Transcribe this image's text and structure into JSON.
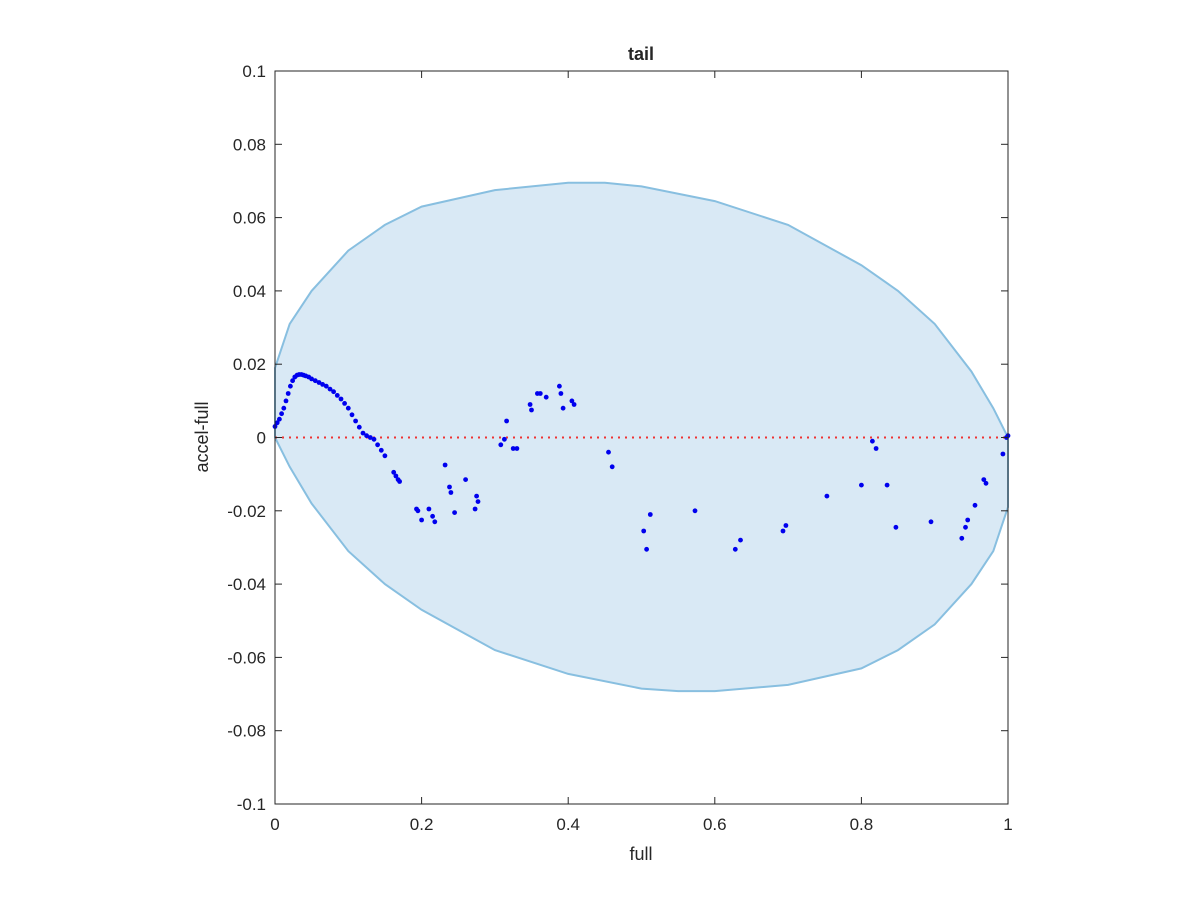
{
  "chart_data": {
    "type": "scatter",
    "title": "tail",
    "xlabel": "full",
    "ylabel": "accel-full",
    "xlim": [
      0,
      1
    ],
    "ylim": [
      -0.1,
      0.1
    ],
    "xticks": [
      0,
      0.2,
      0.4,
      0.6,
      0.8,
      1
    ],
    "xtick_labels": [
      "0",
      "0.2",
      "0.4",
      "0.6",
      "0.8",
      "1"
    ],
    "yticks": [
      -0.1,
      -0.08,
      -0.06,
      -0.04,
      -0.02,
      0,
      0.02,
      0.04,
      0.06,
      0.08,
      0.1
    ],
    "ytick_labels": [
      "-0.1",
      "-0.08",
      "-0.06",
      "-0.04",
      "-0.02",
      "0",
      "0.02",
      "0.04",
      "0.06",
      "0.08",
      "0.1"
    ],
    "grid": false,
    "colors": {
      "points": "#0000ee",
      "ellipse_fill": "#d9e9f5",
      "ellipse_edge": "#88bfe0",
      "zero_line": "#ee3333",
      "axes": "#262626"
    },
    "ellipse": {
      "top_curve": [
        [
          0,
          0.019
        ],
        [
          0.02,
          0.031
        ],
        [
          0.05,
          0.04
        ],
        [
          0.1,
          0.051
        ],
        [
          0.15,
          0.058
        ],
        [
          0.2,
          0.063
        ],
        [
          0.3,
          0.0675
        ],
        [
          0.4,
          0.0695
        ],
        [
          0.45,
          0.0695
        ],
        [
          0.5,
          0.0685
        ],
        [
          0.6,
          0.0645
        ],
        [
          0.7,
          0.058
        ],
        [
          0.8,
          0.047
        ],
        [
          0.85,
          0.04
        ],
        [
          0.9,
          0.031
        ],
        [
          0.95,
          0.018
        ],
        [
          0.98,
          0.008
        ],
        [
          1,
          0
        ]
      ],
      "bottom_curve": [
        [
          1,
          -0.019
        ],
        [
          0.98,
          -0.031
        ],
        [
          0.95,
          -0.04
        ],
        [
          0.9,
          -0.051
        ],
        [
          0.85,
          -0.058
        ],
        [
          0.8,
          -0.063
        ],
        [
          0.7,
          -0.0675
        ],
        [
          0.6,
          -0.0692
        ],
        [
          0.55,
          -0.0692
        ],
        [
          0.5,
          -0.0685
        ],
        [
          0.4,
          -0.0645
        ],
        [
          0.3,
          -0.058
        ],
        [
          0.2,
          -0.047
        ],
        [
          0.15,
          -0.04
        ],
        [
          0.1,
          -0.031
        ],
        [
          0.05,
          -0.018
        ],
        [
          0.02,
          -0.008
        ],
        [
          0,
          0
        ]
      ]
    },
    "zero_line": {
      "y": 0,
      "style": "dotted"
    },
    "points": [
      [
        0.0,
        0.003
      ],
      [
        0.003,
        0.004
      ],
      [
        0.006,
        0.005
      ],
      [
        0.009,
        0.0065
      ],
      [
        0.012,
        0.008
      ],
      [
        0.015,
        0.01
      ],
      [
        0.018,
        0.012
      ],
      [
        0.021,
        0.014
      ],
      [
        0.024,
        0.0155
      ],
      [
        0.027,
        0.0165
      ],
      [
        0.03,
        0.017
      ],
      [
        0.033,
        0.0172
      ],
      [
        0.036,
        0.0172
      ],
      [
        0.039,
        0.017
      ],
      [
        0.042,
        0.0168
      ],
      [
        0.046,
        0.0165
      ],
      [
        0.05,
        0.016
      ],
      [
        0.055,
        0.0155
      ],
      [
        0.06,
        0.015
      ],
      [
        0.065,
        0.0145
      ],
      [
        0.07,
        0.014
      ],
      [
        0.075,
        0.0132
      ],
      [
        0.08,
        0.0125
      ],
      [
        0.085,
        0.0115
      ],
      [
        0.09,
        0.0105
      ],
      [
        0.095,
        0.0093
      ],
      [
        0.1,
        0.008
      ],
      [
        0.105,
        0.0062
      ],
      [
        0.11,
        0.0045
      ],
      [
        0.115,
        0.0028
      ],
      [
        0.12,
        0.0012
      ],
      [
        0.125,
        0.0005
      ],
      [
        0.13,
        0.0
      ],
      [
        0.135,
        -0.0005
      ],
      [
        0.14,
        -0.002
      ],
      [
        0.145,
        -0.0035
      ],
      [
        0.15,
        -0.005
      ],
      [
        0.162,
        -0.0095
      ],
      [
        0.165,
        -0.0105
      ],
      [
        0.168,
        -0.0115
      ],
      [
        0.17,
        -0.012
      ],
      [
        0.193,
        -0.0195
      ],
      [
        0.195,
        -0.02
      ],
      [
        0.2,
        -0.0225
      ],
      [
        0.21,
        -0.0195
      ],
      [
        0.215,
        -0.0215
      ],
      [
        0.218,
        -0.023
      ],
      [
        0.232,
        -0.0075
      ],
      [
        0.238,
        -0.0135
      ],
      [
        0.24,
        -0.015
      ],
      [
        0.245,
        -0.0205
      ],
      [
        0.26,
        -0.0115
      ],
      [
        0.273,
        -0.0195
      ],
      [
        0.275,
        -0.016
      ],
      [
        0.277,
        -0.0175
      ],
      [
        0.308,
        -0.002
      ],
      [
        0.313,
        -0.0005
      ],
      [
        0.316,
        0.0045
      ],
      [
        0.325,
        -0.003
      ],
      [
        0.33,
        -0.003
      ],
      [
        0.348,
        0.009
      ],
      [
        0.35,
        0.0075
      ],
      [
        0.358,
        0.012
      ],
      [
        0.362,
        0.012
      ],
      [
        0.37,
        0.011
      ],
      [
        0.388,
        0.014
      ],
      [
        0.39,
        0.012
      ],
      [
        0.393,
        0.008
      ],
      [
        0.405,
        0.01
      ],
      [
        0.408,
        0.009
      ],
      [
        0.455,
        -0.004
      ],
      [
        0.46,
        -0.008
      ],
      [
        0.503,
        -0.0255
      ],
      [
        0.507,
        -0.0305
      ],
      [
        0.512,
        -0.021
      ],
      [
        0.573,
        -0.02
      ],
      [
        0.628,
        -0.0305
      ],
      [
        0.635,
        -0.028
      ],
      [
        0.693,
        -0.0255
      ],
      [
        0.697,
        -0.024
      ],
      [
        0.753,
        -0.016
      ],
      [
        0.8,
        -0.013
      ],
      [
        0.815,
        -0.001
      ],
      [
        0.82,
        -0.003
      ],
      [
        0.835,
        -0.013
      ],
      [
        0.847,
        -0.0245
      ],
      [
        0.895,
        -0.023
      ],
      [
        0.937,
        -0.0275
      ],
      [
        0.942,
        -0.0245
      ],
      [
        0.945,
        -0.0225
      ],
      [
        0.955,
        -0.0185
      ],
      [
        0.967,
        -0.0115
      ],
      [
        0.97,
        -0.0125
      ],
      [
        0.993,
        -0.0045
      ],
      [
        0.998,
        0.0
      ],
      [
        1.0,
        0.0005
      ]
    ]
  }
}
